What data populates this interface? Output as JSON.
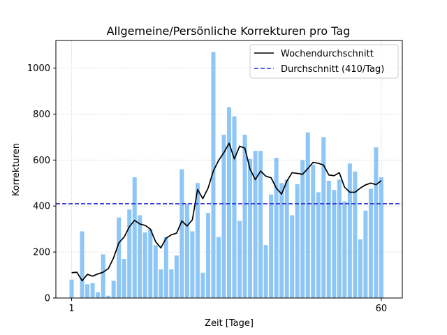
{
  "chart_data": {
    "type": "bar",
    "title": "Allgemeine/Persönliche Korrekturen pro Tag",
    "xlabel": "Zeit [Tage]",
    "ylabel": "Korrekturen",
    "x_ticks": [
      1,
      60
    ],
    "y_ticks": [
      0,
      200,
      400,
      600,
      800,
      1000
    ],
    "xlim": [
      -2,
      64
    ],
    "ylim": [
      0,
      1120
    ],
    "grid": true,
    "legend_position": "top-right",
    "colors": {
      "bars": "#8ec6f5",
      "line": "#000000",
      "mean": "#2a2ad6"
    },
    "x": [
      1,
      2,
      3,
      4,
      5,
      6,
      7,
      8,
      9,
      10,
      11,
      12,
      13,
      14,
      15,
      16,
      17,
      18,
      19,
      20,
      21,
      22,
      23,
      24,
      25,
      26,
      27,
      28,
      29,
      30,
      31,
      32,
      33,
      34,
      35,
      36,
      37,
      38,
      39,
      40,
      41,
      42,
      43,
      44,
      45,
      46,
      47,
      48,
      49,
      50,
      51,
      52,
      53,
      54,
      55,
      56,
      57,
      58,
      59,
      60
    ],
    "values": [
      80,
      0,
      290,
      60,
      65,
      25,
      190,
      10,
      75,
      350,
      170,
      385,
      525,
      360,
      285,
      300,
      230,
      125,
      265,
      125,
      185,
      560,
      410,
      290,
      500,
      110,
      370,
      1070,
      265,
      710,
      830,
      790,
      335,
      710,
      605,
      640,
      640,
      230,
      450,
      610,
      500,
      515,
      360,
      495,
      600,
      720,
      580,
      460,
      700,
      510,
      470,
      515,
      420,
      585,
      550,
      255,
      380,
      475,
      655,
      525
    ],
    "series": [
      {
        "name": "Wochendurchschnitt",
        "type": "line",
        "values": [
          110,
          112,
          75,
          103,
          95,
          105,
          112,
          128,
          175,
          240,
          265,
          310,
          338,
          322,
          316,
          300,
          245,
          218,
          260,
          275,
          282,
          335,
          313,
          340,
          472,
          432,
          478,
          552,
          598,
          632,
          673,
          605,
          660,
          652,
          560,
          515,
          552,
          530,
          523,
          478,
          452,
          508,
          545,
          542,
          538,
          563,
          590,
          586,
          578,
          535,
          532,
          545,
          482,
          460,
          460,
          478,
          492,
          500,
          493,
          510
        ]
      },
      {
        "name": "Durchschnitt (410/Tag)",
        "type": "hline",
        "value": 410
      }
    ],
    "axes_box_style": "all-spines"
  }
}
